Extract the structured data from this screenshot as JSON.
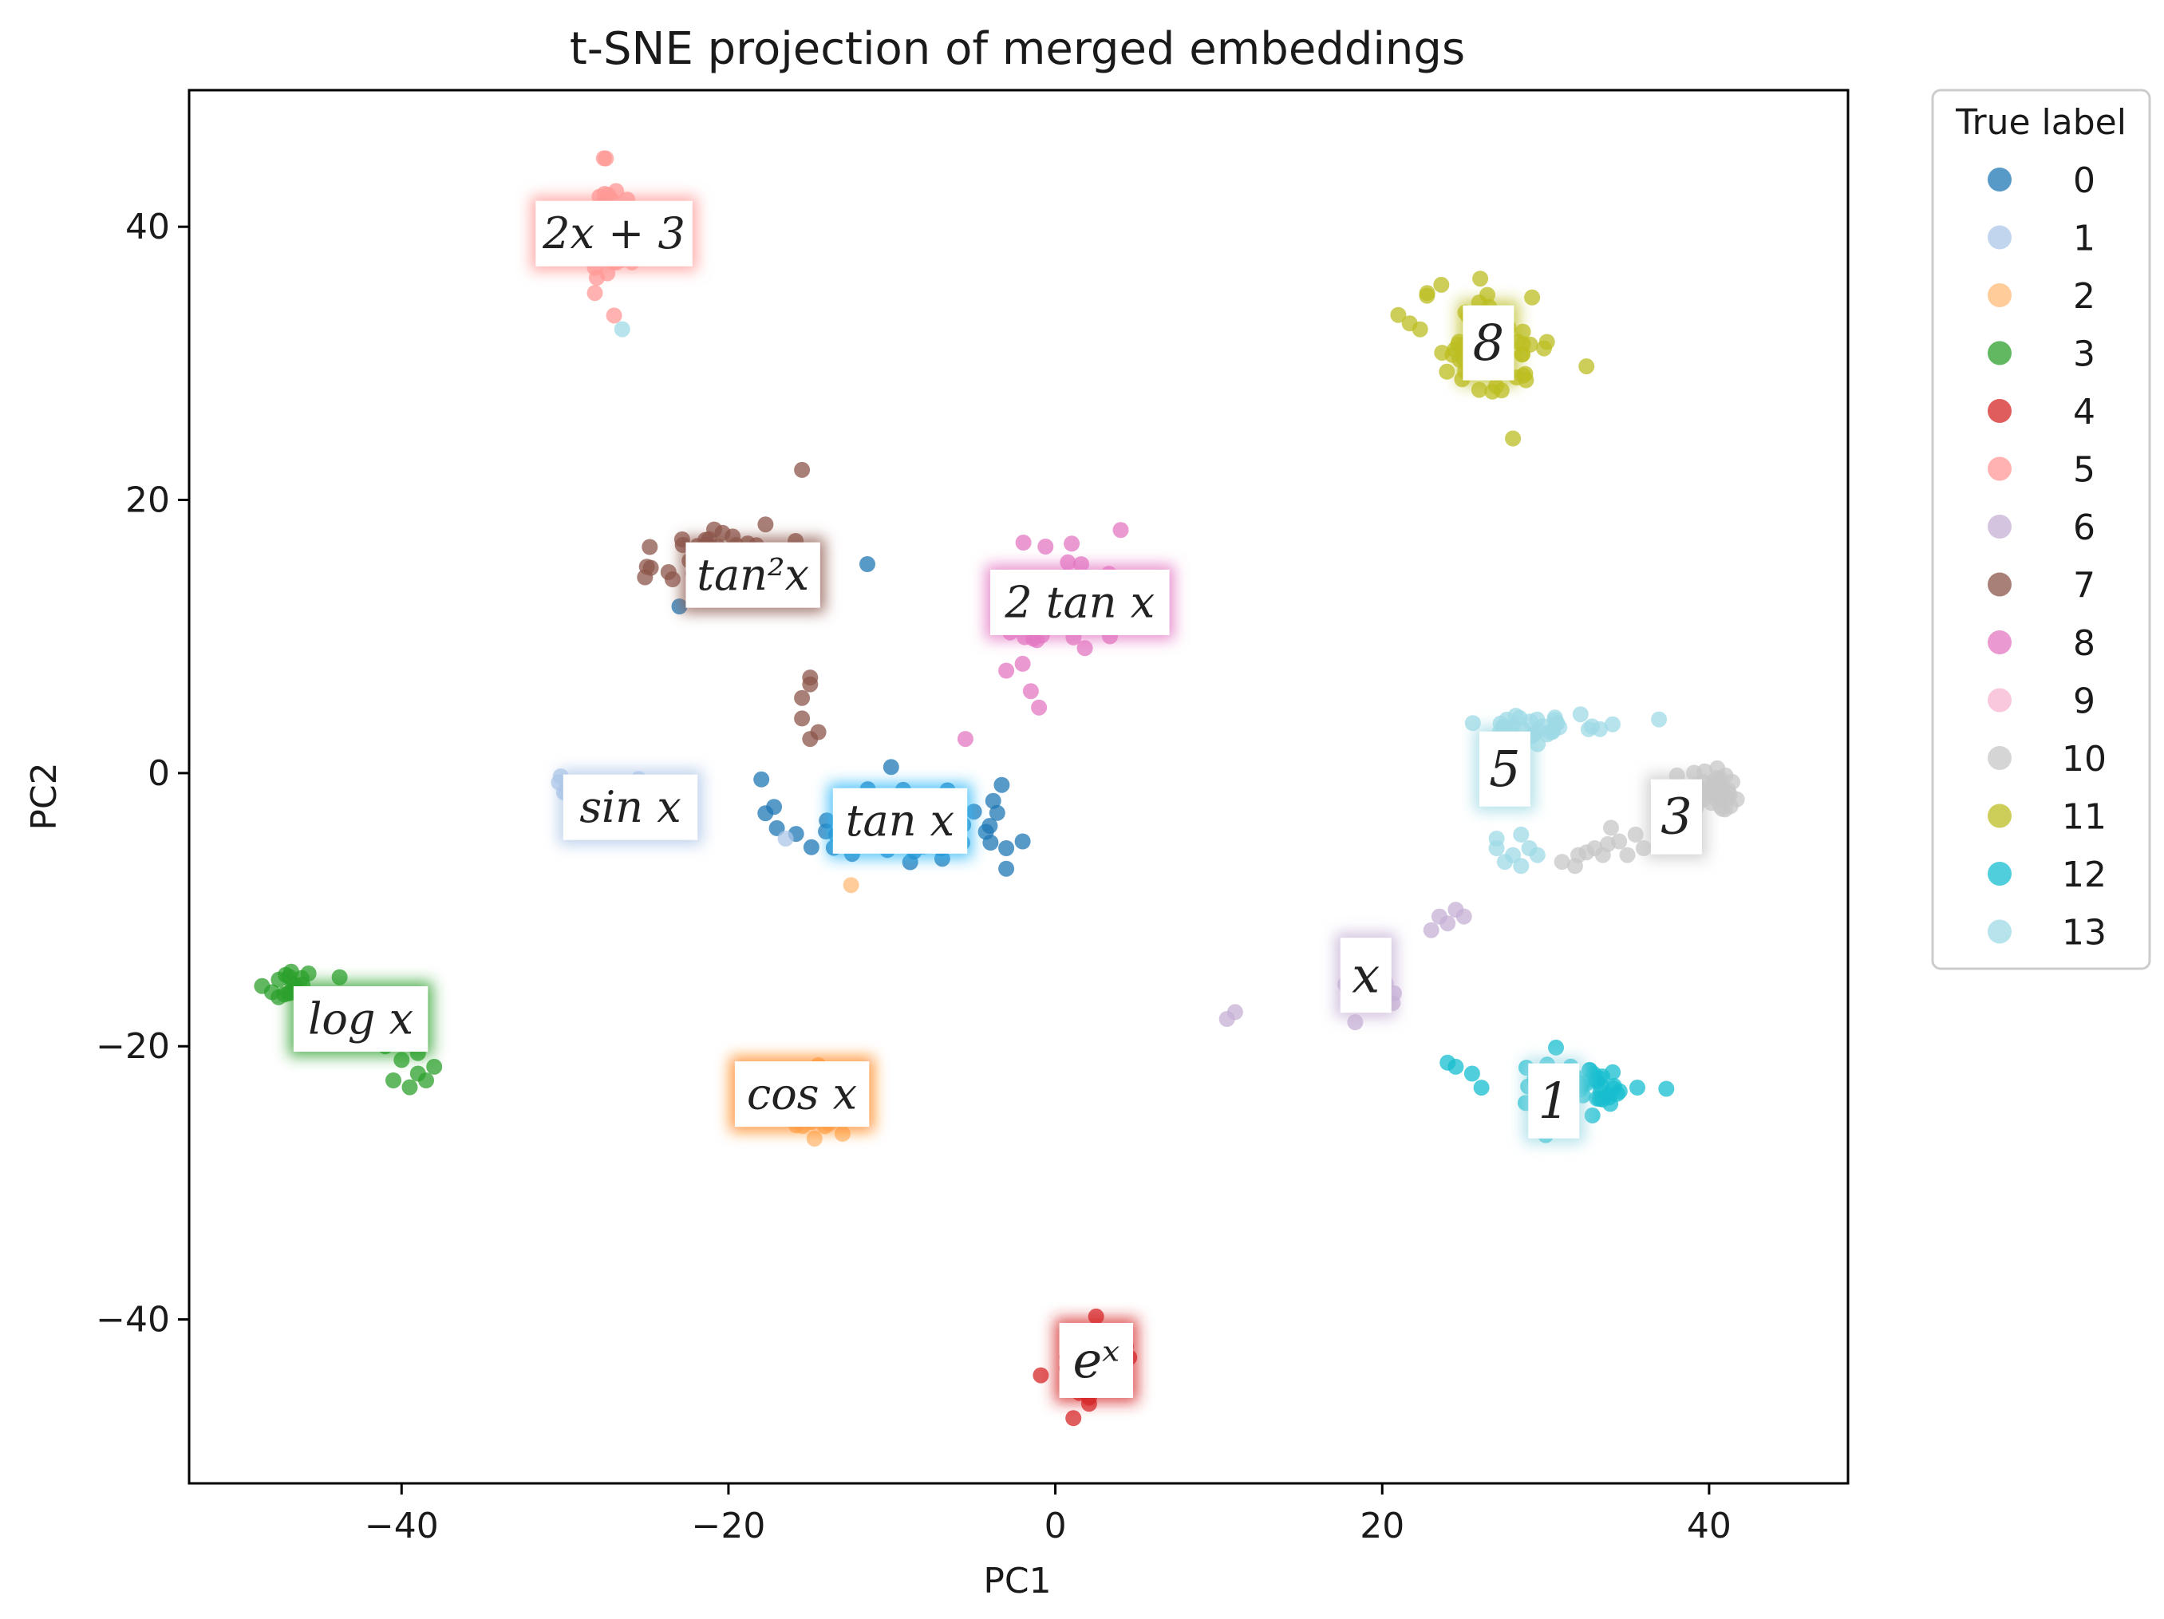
{
  "chart_data": {
    "type": "scatter",
    "title": "t-SNE projection of merged embeddings",
    "xlabel": "PC1",
    "ylabel": "PC2",
    "xlim": [
      -53,
      48.5
    ],
    "ylim": [
      -52,
      50
    ],
    "xticks": [
      -40,
      -20,
      0,
      20,
      40
    ],
    "yticks": [
      -40,
      -20,
      0,
      20,
      40
    ],
    "xtick_labels": [
      "−40",
      "−20",
      "0",
      "20",
      "40"
    ],
    "ytick_labels": [
      "−40",
      "−20",
      "0",
      "20",
      "40"
    ],
    "grid": false,
    "legend": {
      "title": "True label",
      "placement": "outside-right"
    },
    "series": [
      {
        "name": "0",
        "color": "#1f77b4",
        "center": [
          -10,
          -3.5
        ],
        "spread": [
          5.5,
          2.6
        ],
        "n": 75,
        "extra": [
          [
            -11.5,
            15.3
          ],
          [
            -23,
            12.2
          ],
          [
            -3,
            -5.5
          ],
          [
            -2,
            -5
          ],
          [
            -3,
            -7
          ]
        ]
      },
      {
        "name": "1",
        "color": "#aec7e8",
        "center": [
          -28,
          -1.5
        ],
        "spread": [
          3.2,
          1.6
        ],
        "n": 20,
        "extra": [
          [
            -16.5,
            -4.8
          ]
        ]
      },
      {
        "name": "2",
        "color": "#ffbb78",
        "center": [
          -15,
          -24
        ],
        "spread": [
          1.8,
          2.2
        ],
        "n": 28,
        "extra": [
          [
            -12.5,
            -8.2
          ]
        ]
      },
      {
        "name": "3",
        "color": "#2ca02c",
        "center": [
          -46.5,
          -15.5
        ],
        "spread": [
          1.4,
          1.2
        ],
        "n": 22,
        "extra": [
          [
            -39,
            -22
          ],
          [
            -38.5,
            -22.5
          ],
          [
            -40,
            -21
          ],
          [
            -39.5,
            -23
          ],
          [
            -38,
            -21.5
          ],
          [
            -40.5,
            -22.5
          ],
          [
            -39,
            -20.5
          ],
          [
            -41,
            -20
          ]
        ]
      },
      {
        "name": "4",
        "color": "#d62728",
        "center": [
          2.5,
          -43.5
        ],
        "spread": [
          2.0,
          2.4
        ],
        "n": 42,
        "extra": []
      },
      {
        "name": "5",
        "color": "#ff9896",
        "center": [
          -27.5,
          39.5
        ],
        "spread": [
          1.5,
          3.4
        ],
        "n": 48,
        "extra": [
          [
            -27,
            33.5
          ],
          [
            -27.5,
            45
          ]
        ]
      },
      {
        "name": "6",
        "color": "#c5b0d5",
        "center": [
          19.5,
          -15.5
        ],
        "spread": [
          1.3,
          2.0
        ],
        "n": 18,
        "extra": [
          [
            23.5,
            -10.5
          ],
          [
            24,
            -11
          ],
          [
            23,
            -11.5
          ],
          [
            24.5,
            -10
          ],
          [
            25,
            -10.5
          ],
          [
            10.5,
            -18
          ],
          [
            11,
            -17.5
          ]
        ]
      },
      {
        "name": "7",
        "color": "#8c564b",
        "center": [
          -20,
          15.5
        ],
        "spread": [
          3.3,
          2.3
        ],
        "n": 75,
        "extra": [
          [
            -15.5,
            22.2
          ],
          [
            -15,
            7
          ],
          [
            -15.5,
            5.5
          ],
          [
            -14.5,
            3
          ],
          [
            -15.5,
            4
          ],
          [
            -15,
            2.5
          ],
          [
            -15,
            6.5
          ]
        ]
      },
      {
        "name": "8",
        "color": "#e377c2",
        "center": [
          0.5,
          12.5
        ],
        "spread": [
          3.8,
          2.6
        ],
        "n": 68,
        "extra": [
          [
            -2,
            8
          ],
          [
            -1.5,
            6
          ],
          [
            -3,
            7.5
          ],
          [
            -1,
            4.8
          ],
          [
            -5.5,
            2.5
          ],
          [
            4,
            17.8
          ],
          [
            1,
            16.8
          ]
        ]
      },
      {
        "name": "9",
        "color": "#f7b6d2",
        "center": [
          -5.5,
          2.5
        ],
        "spread": [
          0.3,
          0.3
        ],
        "n": 0,
        "extra": []
      },
      {
        "name": "10",
        "color": "#c7c7c7",
        "center": [
          40.5,
          -1.5
        ],
        "spread": [
          1.6,
          1.4
        ],
        "n": 40,
        "extra": [
          [
            33,
            -5.5
          ],
          [
            34.5,
            -5
          ],
          [
            35.5,
            -4.5
          ],
          [
            33.5,
            -6
          ],
          [
            31,
            -6.5
          ],
          [
            32,
            -6
          ],
          [
            34,
            -4
          ],
          [
            36,
            -5.5
          ],
          [
            37,
            -5
          ],
          [
            32.5,
            -5.8
          ],
          [
            35,
            -6
          ],
          [
            31.8,
            -6.8
          ],
          [
            33.8,
            -5.2
          ]
        ]
      },
      {
        "name": "11",
        "color": "#bcbd22",
        "center": [
          26.5,
          31.5
        ],
        "spread": [
          3.4,
          3.2
        ],
        "n": 70,
        "extra": [
          [
            28,
            24.5
          ],
          [
            26,
            36.2
          ]
        ]
      },
      {
        "name": "12",
        "color": "#17becf",
        "center": [
          32,
          -23
        ],
        "spread": [
          3.4,
          1.6
        ],
        "n": 55,
        "extra": [
          [
            24,
            -21.2
          ],
          [
            24.5,
            -21.5
          ],
          [
            25.5,
            -22
          ],
          [
            30,
            -26.5
          ]
        ]
      },
      {
        "name": "13",
        "color": "#9edae5",
        "center": [
          30,
          3.5
        ],
        "spread": [
          4.0,
          0.7
        ],
        "n": 34,
        "extra": [
          [
            -26.5,
            32.5
          ],
          [
            27,
            -5.5
          ],
          [
            28,
            -6
          ],
          [
            27.5,
            -6.5
          ],
          [
            29,
            -5.5
          ],
          [
            28.5,
            -4.5
          ],
          [
            27,
            -4.8
          ],
          [
            28.5,
            -6.8
          ],
          [
            29.5,
            -6
          ]
        ]
      }
    ],
    "annotations": [
      {
        "text": "2x + 3",
        "x": -27,
        "y": 39.5,
        "glow": "#ff9896"
      },
      {
        "text": "8",
        "x": 26.5,
        "y": 31.5,
        "glow": "#bcbd22"
      },
      {
        "text": "tan²x",
        "x": -18.5,
        "y": 14.5,
        "glow": "#8c564b"
      },
      {
        "text": "2 tan x",
        "x": 1.5,
        "y": 12.5,
        "glow": "#e377c2"
      },
      {
        "text": "sin x",
        "x": -26,
        "y": -2.5,
        "glow": "#aec7e8"
      },
      {
        "text": "tan x",
        "x": -9.5,
        "y": -3.5,
        "glow": "#29b6f6"
      },
      {
        "text": "5",
        "x": 27.5,
        "y": 0.3,
        "glow": "#9edae5"
      },
      {
        "text": "3",
        "x": 38,
        "y": -3.2,
        "glow": "#c7c7c7"
      },
      {
        "text": "x",
        "x": 19,
        "y": -14.8,
        "glow": "#c5b0d5"
      },
      {
        "text": "log x",
        "x": -42.5,
        "y": -18,
        "glow": "#2ca02c"
      },
      {
        "text": "cos x",
        "x": -15.5,
        "y": -23.5,
        "glow": "#ff7f0e"
      },
      {
        "text": "1",
        "x": 30.5,
        "y": -24,
        "glow": "#9edae5"
      },
      {
        "text": "eˣ",
        "x": 2.5,
        "y": -43,
        "glow": "#d62728"
      }
    ]
  }
}
